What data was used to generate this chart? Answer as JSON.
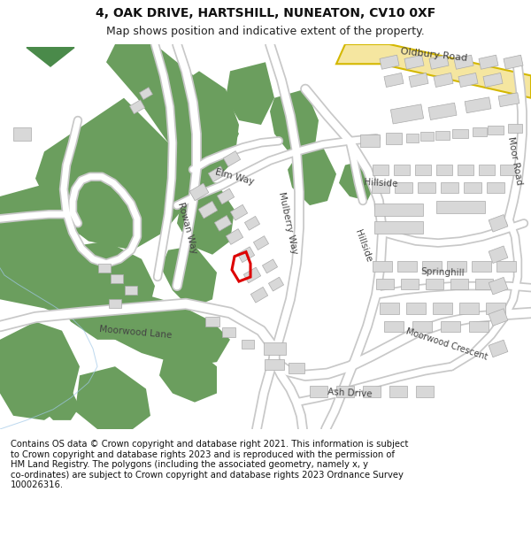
{
  "title": "4, OAK DRIVE, HARTSHILL, NUNEATON, CV10 0XF",
  "subtitle": "Map shows position and indicative extent of the property.",
  "footer": "Contains OS data © Crown copyright and database right 2021. This information is subject\nto Crown copyright and database rights 2023 and is reproduced with the permission of\nHM Land Registry. The polygons (including the associated geometry, namely x, y\nco-ordinates) are subject to Crown copyright and database rights 2023 Ordnance Survey\n100026316.",
  "bg_color": "#ffffff",
  "map_bg": "#f2f1ec",
  "road_color": "#ffffff",
  "road_border": "#c8c8c8",
  "building_color": "#d8d8d8",
  "building_border": "#aaaaaa",
  "green_color": "#6b9e5e",
  "highlight_color": "#dd0000",
  "road_yellow": "#f5e6a0",
  "road_yellow_border": "#d4b800",
  "arrow_color": "#4a8a4a",
  "title_fontsize": 10,
  "subtitle_fontsize": 9,
  "footer_fontsize": 7.2,
  "label_fontsize": 7.5
}
